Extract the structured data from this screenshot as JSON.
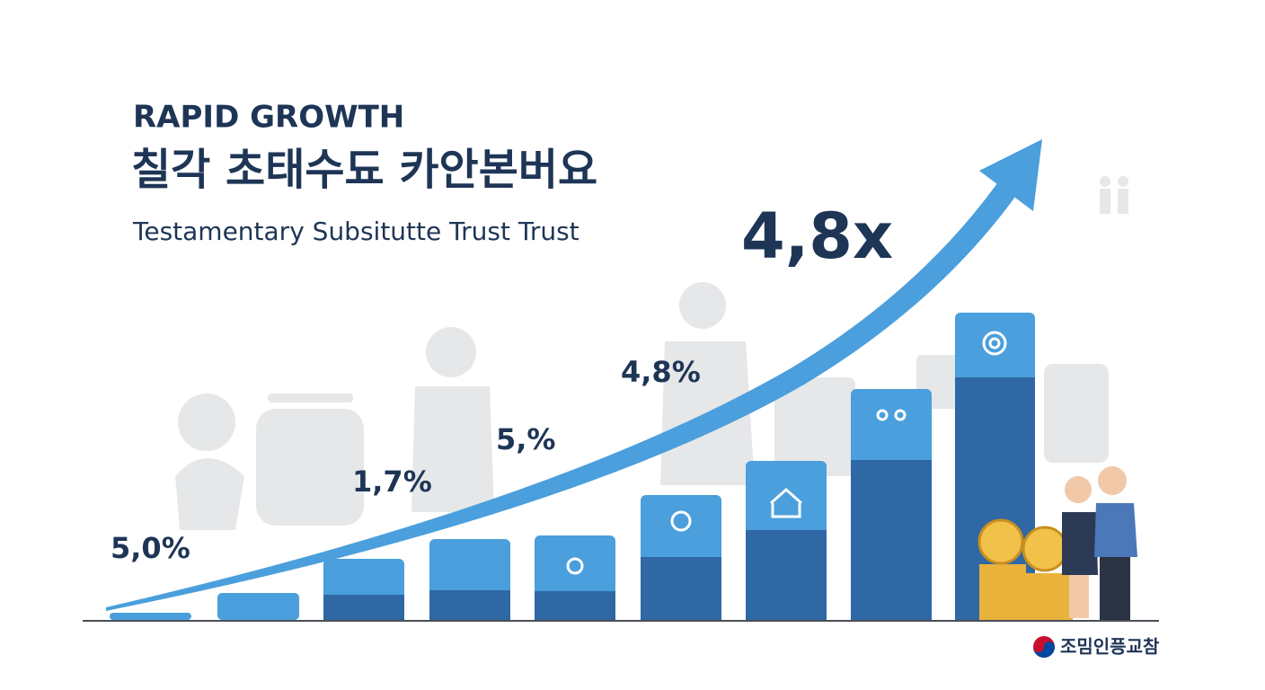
{
  "header": {
    "kicker": "RAPID GROWTH",
    "title": "칠각 초태수됴 카안본버요",
    "subtitle": "Testamentary Subsitutte Trust  Trust"
  },
  "annotations": {
    "multiplier": "4,8x",
    "labels": [
      "5,0%",
      "1,7%",
      "5,%",
      "4,8%"
    ]
  },
  "footer": {
    "logo": "조밈인픙교참"
  }
}
